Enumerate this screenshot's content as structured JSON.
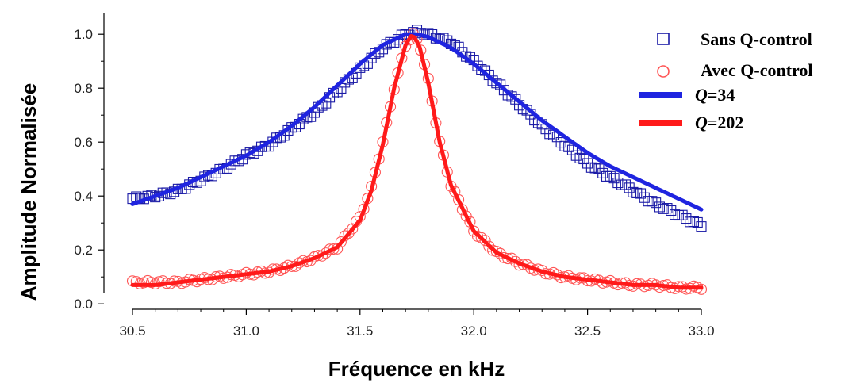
{
  "chart_data": {
    "type": "scatter",
    "title": "",
    "xlabel": "Fréquence en kHz",
    "ylabel": "Amplitude Normalisée",
    "xlim": [
      30.5,
      33.0
    ],
    "ylim": [
      -0.02,
      1.08
    ],
    "x_ticks": [
      "30.5",
      "31.0",
      "31.5",
      "32.0",
      "32.5",
      "33.0"
    ],
    "y_ticks": [
      "0.0",
      "0.2",
      "0.4",
      "0.6",
      "0.8",
      "1.0"
    ],
    "grid": false,
    "legend_position": "top-right",
    "series": [
      {
        "name": "Sans Q-control",
        "kind": "markers",
        "marker": "square",
        "color": "#1a1aa6",
        "x": [
          30.5,
          30.6,
          30.7,
          30.8,
          30.9,
          31.0,
          31.1,
          31.2,
          31.3,
          31.4,
          31.5,
          31.6,
          31.7,
          31.75,
          31.8,
          31.9,
          32.0,
          32.1,
          32.2,
          32.3,
          32.4,
          32.5,
          32.6,
          32.7,
          32.8,
          32.9,
          33.0
        ],
        "y": [
          0.39,
          0.4,
          0.42,
          0.46,
          0.5,
          0.55,
          0.59,
          0.65,
          0.71,
          0.79,
          0.87,
          0.95,
          1.0,
          1.01,
          1.0,
          0.97,
          0.9,
          0.82,
          0.74,
          0.66,
          0.59,
          0.52,
          0.47,
          0.42,
          0.37,
          0.33,
          0.29
        ]
      },
      {
        "name": "Avec Q-control",
        "kind": "markers",
        "marker": "circle",
        "color": "#ff5555",
        "x": [
          30.5,
          30.6,
          30.7,
          30.8,
          30.9,
          31.0,
          31.1,
          31.2,
          31.3,
          31.4,
          31.5,
          31.55,
          31.6,
          31.65,
          31.7,
          31.73,
          31.76,
          31.8,
          31.85,
          31.9,
          32.0,
          32.1,
          32.2,
          32.3,
          32.4,
          32.5,
          32.6,
          32.7,
          32.8,
          32.9,
          33.0
        ],
        "y": [
          0.08,
          0.08,
          0.08,
          0.09,
          0.1,
          0.11,
          0.12,
          0.14,
          0.17,
          0.21,
          0.32,
          0.43,
          0.6,
          0.8,
          0.96,
          1.0,
          0.97,
          0.83,
          0.6,
          0.44,
          0.27,
          0.19,
          0.15,
          0.12,
          0.1,
          0.09,
          0.08,
          0.07,
          0.07,
          0.06,
          0.06
        ]
      },
      {
        "name": "Q=34",
        "kind": "line",
        "color": "#1f24e0",
        "x": [
          30.5,
          30.6,
          30.7,
          30.8,
          30.9,
          31.0,
          31.1,
          31.2,
          31.3,
          31.4,
          31.5,
          31.6,
          31.7,
          31.75,
          31.8,
          31.9,
          32.0,
          32.1,
          32.2,
          32.3,
          32.4,
          32.5,
          32.6,
          32.7,
          32.8,
          32.9,
          33.0
        ],
        "y": [
          0.37,
          0.4,
          0.43,
          0.47,
          0.51,
          0.55,
          0.6,
          0.66,
          0.73,
          0.81,
          0.89,
          0.96,
          1.0,
          1.0,
          0.99,
          0.95,
          0.89,
          0.82,
          0.75,
          0.68,
          0.62,
          0.56,
          0.51,
          0.47,
          0.43,
          0.39,
          0.35
        ]
      },
      {
        "name": "Q=202",
        "kind": "line",
        "color": "#ff1a1a",
        "x": [
          30.5,
          30.6,
          30.7,
          30.8,
          30.9,
          31.0,
          31.1,
          31.2,
          31.3,
          31.4,
          31.5,
          31.55,
          31.6,
          31.65,
          31.7,
          31.73,
          31.76,
          31.8,
          31.85,
          31.9,
          32.0,
          32.1,
          32.2,
          32.3,
          32.4,
          32.5,
          32.6,
          32.7,
          32.8,
          32.9,
          33.0
        ],
        "y": [
          0.07,
          0.07,
          0.08,
          0.09,
          0.1,
          0.11,
          0.12,
          0.14,
          0.17,
          0.21,
          0.31,
          0.42,
          0.59,
          0.8,
          0.96,
          1.0,
          0.96,
          0.82,
          0.6,
          0.44,
          0.27,
          0.19,
          0.15,
          0.12,
          0.1,
          0.09,
          0.08,
          0.07,
          0.07,
          0.06,
          0.06
        ]
      }
    ]
  }
}
